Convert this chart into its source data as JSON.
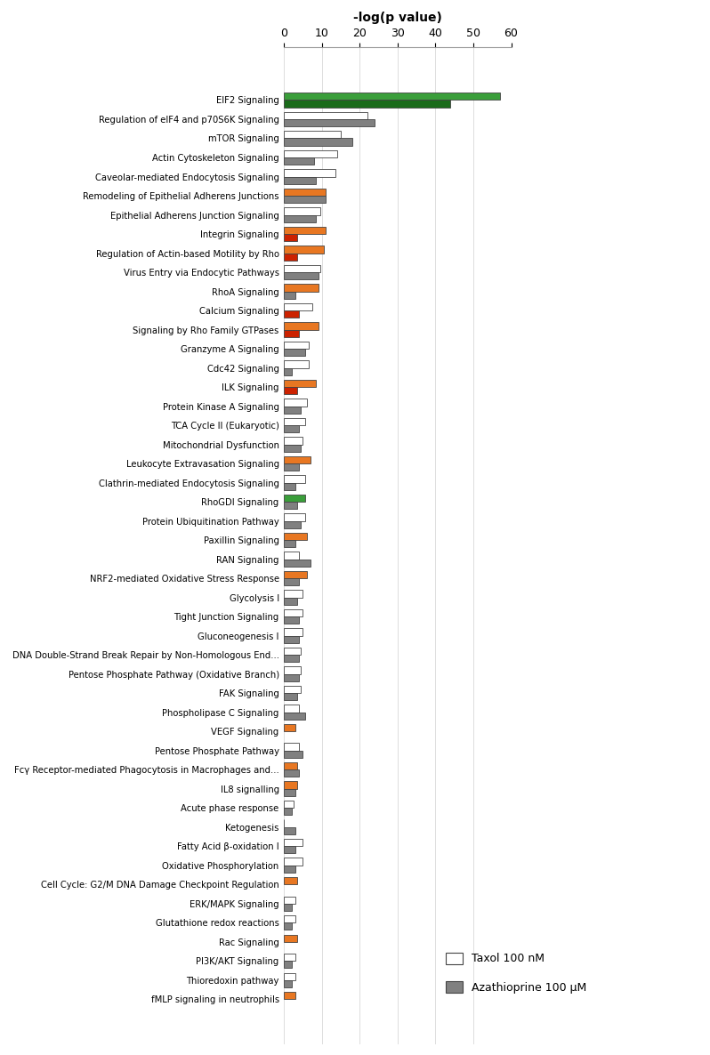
{
  "pathways": [
    "EIF2 Signaling",
    "Regulation of eIF4 and p70S6K Signaling",
    "mTOR Signaling",
    "Actin Cytoskeleton Signaling",
    "Caveolar-mediated Endocytosis Signaling",
    "Remodeling of Epithelial Adherens Junctions",
    "Epithelial Adherens Junction Signaling",
    "Integrin Signaling",
    "Regulation of Actin-based Motility by Rho",
    "Virus Entry via Endocytic Pathways",
    "RhoA Signaling",
    "Calcium Signaling",
    "Signaling by Rho Family GTPases",
    "Granzyme A Signaling",
    "Cdc42 Signaling",
    "ILK Signaling",
    "Protein Kinase A Signaling",
    "TCA Cycle II (Eukaryotic)",
    "Mitochondrial Dysfunction",
    "Leukocyte Extravasation Signaling",
    "Clathrin-mediated Endocytosis Signaling",
    "RhoGDI Signaling",
    "Protein Ubiquitination Pathway",
    "Paxillin Signaling",
    "RAN Signaling",
    "NRF2-mediated Oxidative Stress Response",
    "Glycolysis I",
    "Tight Junction Signaling",
    "Gluconeogenesis I",
    "DNA Double-Strand Break Repair by Non-Homologous End...",
    "Pentose Phosphate Pathway (Oxidative Branch)",
    "FAK Signaling",
    "Phospholipase C Signaling",
    "VEGF Signaling",
    "Pentose Phosphate Pathway",
    "Fcγ Receptor-mediated Phagocytosis in Macrophages and...",
    "IL8 signalling",
    "Acute phase response",
    "Ketogenesis",
    "Fatty Acid β-oxidation I",
    "Oxidative Phosphorylation",
    "Cell Cycle: G2/M DNA Damage Checkpoint Regulation",
    "ERK/MAPK Signaling",
    "Glutathione redox reactions",
    "Rac Signaling",
    "PI3K/AKT Signaling",
    "Thioredoxin pathway",
    "fMLP signaling in neutrophils"
  ],
  "taxol_values": [
    57.0,
    22.0,
    15.0,
    14.0,
    13.5,
    11.0,
    9.5,
    11.0,
    10.5,
    9.5,
    9.0,
    7.5,
    9.0,
    6.5,
    6.5,
    8.5,
    6.0,
    5.5,
    5.0,
    7.0,
    5.5,
    5.5,
    5.5,
    6.0,
    4.0,
    6.0,
    5.0,
    5.0,
    5.0,
    4.5,
    4.5,
    4.5,
    4.0,
    3.0,
    4.0,
    3.5,
    3.5,
    2.5,
    0.0,
    5.0,
    5.0,
    3.5,
    3.0,
    3.0,
    3.5,
    3.0,
    3.0,
    3.0
  ],
  "aza_values": [
    44.0,
    24.0,
    18.0,
    8.0,
    8.5,
    11.0,
    8.5,
    3.5,
    3.5,
    9.0,
    3.0,
    4.0,
    4.0,
    5.5,
    2.0,
    3.5,
    4.5,
    4.0,
    4.5,
    4.0,
    3.0,
    3.5,
    4.5,
    3.0,
    7.0,
    4.0,
    3.5,
    4.0,
    4.0,
    4.0,
    4.0,
    3.5,
    5.5,
    0.0,
    5.0,
    4.0,
    3.0,
    2.0,
    3.0,
    3.0,
    3.0,
    0.0,
    2.0,
    2.0,
    0.0,
    2.0,
    2.0,
    0.0
  ],
  "taxol_colors": [
    "#3a9e3a",
    "#ffffff",
    "#ffffff",
    "#ffffff",
    "#ffffff",
    "#e87722",
    "#ffffff",
    "#e87722",
    "#e87722",
    "#ffffff",
    "#e87722",
    "#ffffff",
    "#e87722",
    "#ffffff",
    "#ffffff",
    "#e87722",
    "#ffffff",
    "#ffffff",
    "#ffffff",
    "#e87722",
    "#ffffff",
    "#3a9e3a",
    "#ffffff",
    "#e87722",
    "#ffffff",
    "#e87722",
    "#ffffff",
    "#ffffff",
    "#ffffff",
    "#ffffff",
    "#ffffff",
    "#ffffff",
    "#ffffff",
    "#e87722",
    "#ffffff",
    "#e87722",
    "#e87722",
    "#ffffff",
    "#ffffff",
    "#ffffff",
    "#ffffff",
    "#e87722",
    "#ffffff",
    "#ffffff",
    "#e87722",
    "#ffffff",
    "#ffffff",
    "#e87722"
  ],
  "aza_colors": [
    "#1a6b1a",
    "#808080",
    "#808080",
    "#808080",
    "#808080",
    "#808080",
    "#808080",
    "#cc2200",
    "#cc2200",
    "#808080",
    "#808080",
    "#cc2200",
    "#cc2200",
    "#808080",
    "#808080",
    "#cc2200",
    "#808080",
    "#808080",
    "#808080",
    "#808080",
    "#808080",
    "#808080",
    "#808080",
    "#808080",
    "#808080",
    "#808080",
    "#808080",
    "#808080",
    "#808080",
    "#808080",
    "#808080",
    "#808080",
    "#808080",
    "#808080",
    "#808080",
    "#808080",
    "#808080",
    "#808080",
    "#808080",
    "#808080",
    "#808080",
    "#808080",
    "#808080",
    "#808080",
    "#808080",
    "#808080",
    "#808080",
    "#808080"
  ],
  "xlabel": "-log(p value)",
  "xlim": [
    0,
    60
  ],
  "xticks": [
    0,
    10,
    20,
    30,
    40,
    50,
    60
  ],
  "bar_height": 0.38,
  "background_color": "#ffffff",
  "legend_taxol": "Taxol 100 nM",
  "legend_aza": "Azathioprine 100 μM"
}
